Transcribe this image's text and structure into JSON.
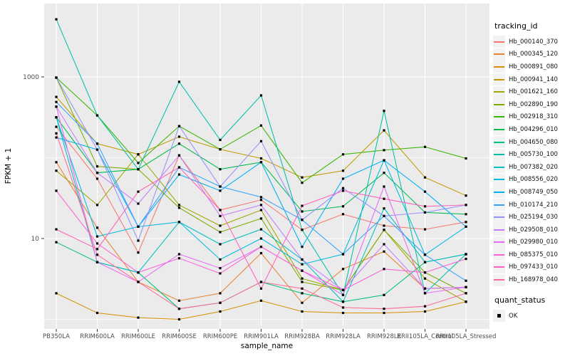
{
  "legend": {
    "tracking_title": "tracking_id",
    "quant_title": "quant_status",
    "quant_value": "OK"
  },
  "chart_data": {
    "type": "line",
    "title": "",
    "xlabel": "sample_name",
    "ylabel": "FPKM + 1",
    "y_scale": "log10",
    "panel_bg": "#EBEBEB",
    "grid_color": "#FFFFFF",
    "tick_text_color": "#4D4D4D",
    "marker": {
      "shape": "square",
      "color": "#000000"
    },
    "y_major_ticks": [
      {
        "label": "1000",
        "value": 1000
      },
      {
        "label": "10",
        "value": 10
      }
    ],
    "y_gridlines_major": [
      10,
      1000
    ],
    "y_gridlines_minor": [
      1,
      100
    ],
    "x_categories": [
      "PB350LA",
      "RRIM600LA",
      "RRIM600LE",
      "RRIM600SE",
      "RRIM600PE",
      "RRIM901LA",
      "RRIM928BA",
      "RRIM928LA",
      "RRIM928LE",
      "RRII105LA_Control",
      "RRII105LA_Stressed"
    ],
    "series": [
      {
        "name": "Hb_000140_370",
        "color": "#F8766D",
        "values": [
          241,
          55,
          6.7,
          107,
          22.5,
          30,
          12.8,
          20,
          14.4,
          13,
          16
        ]
      },
      {
        "name": "Hb_000345_120",
        "color": "#EA8331",
        "values": [
          88,
          13.6,
          2.9,
          1.7,
          2.1,
          6.6,
          1.6,
          4.2,
          6.9,
          2.4,
          2.5
        ]
      },
      {
        "name": "Hb_000891_080",
        "color": "#D89000",
        "values": [
          2.1,
          1.2,
          1.05,
          1.0,
          1.25,
          1.7,
          1.25,
          1.2,
          1.2,
          1.25,
          1.65
        ]
      },
      {
        "name": "Hb_000941_140",
        "color": "#C09B00",
        "values": [
          565,
          149,
          110,
          182,
          127,
          98,
          57,
          69,
          218,
          57,
          34
        ]
      },
      {
        "name": "Hb_001621_160",
        "color": "#A3A500",
        "values": [
          69,
          26,
          110,
          26,
          14.4,
          22.5,
          3.2,
          2.3,
          12.8,
          3.2,
          1.65
        ]
      },
      {
        "name": "Hb_002890_190",
        "color": "#7CAE00",
        "values": [
          980,
          78,
          72,
          24,
          12,
          17.7,
          2.9,
          2.3,
          12.8,
          3.8,
          2.1
        ]
      },
      {
        "name": "Hb_002918_310",
        "color": "#39B600",
        "values": [
          980,
          334,
          86,
          246,
          127,
          250,
          49,
          110,
          124,
          136,
          98
        ]
      },
      {
        "name": "Hb_004296_010",
        "color": "#00BB4E",
        "values": [
          316,
          65,
          72,
          149,
          72,
          88,
          21.6,
          25,
          65,
          21,
          20
        ]
      },
      {
        "name": "Hb_004650_080",
        "color": "#00BF7D",
        "values": [
          9,
          5.1,
          3.8,
          1.35,
          1.6,
          2.9,
          2.1,
          1.65,
          2.0,
          5.1,
          6.4
        ]
      },
      {
        "name": "Hb_005730_100",
        "color": "#00C1A3",
        "values": [
          5160,
          334,
          72,
          870,
          166,
          590,
          12.8,
          2.0,
          380,
          2.1,
          6.4
        ]
      },
      {
        "name": "Hb_007382_020",
        "color": "#00BFC4",
        "values": [
          316,
          5.1,
          3.8,
          16,
          8.5,
          13,
          5.5,
          1.65,
          23.6,
          5.1,
          6.4
        ]
      },
      {
        "name": "Hb_008556_020",
        "color": "#00BAE0",
        "values": [
          316,
          10.6,
          14,
          16,
          5.5,
          10,
          4.8,
          6.4,
          93,
          6.3,
          14
        ]
      },
      {
        "name": "Hb_008749_050",
        "color": "#00B0F6",
        "values": [
          178,
          126,
          14,
          62,
          39,
          88,
          7.9,
          55,
          93,
          38,
          14
        ]
      },
      {
        "name": "Hb_010174_210",
        "color": "#35A2FF",
        "values": [
          490,
          149,
          14,
          76,
          44,
          32.5,
          17,
          6.4,
          19,
          6.3,
          3.0
        ]
      },
      {
        "name": "Hb_025194_030",
        "color": "#9590FF",
        "values": [
          980,
          126,
          9.4,
          246,
          44,
          160,
          17,
          42,
          19,
          21,
          26
        ]
      },
      {
        "name": "Hb_029508_010",
        "color": "#C77CFF",
        "values": [
          427,
          65,
          27,
          107,
          19,
          26,
          5.5,
          2.3,
          8.5,
          2.4,
          2.5
        ]
      },
      {
        "name": "Hb_029980_010",
        "color": "#E76BF3",
        "values": [
          427,
          5.1,
          2.9,
          6.4,
          4.3,
          7.9,
          4.0,
          2.0,
          44,
          2.1,
          2.5
        ]
      },
      {
        "name": "Hb_085375_010",
        "color": "#FA62DB",
        "values": [
          39,
          8.7,
          3.8,
          5.7,
          3.7,
          7.9,
          4.0,
          2.3,
          4.2,
          3.8,
          5.6
        ]
      },
      {
        "name": "Hb_097433_010",
        "color": "#FF62BC",
        "values": [
          13,
          7.4,
          38,
          76,
          22.5,
          2.4,
          25.4,
          39,
          31,
          25,
          26
        ]
      },
      {
        "name": "Hb_168978_040",
        "color": "#FF6A98",
        "values": [
          200,
          6.3,
          2.9,
          1.35,
          1.6,
          2.9,
          2.4,
          1.4,
          1.35,
          1.45,
          2.1
        ]
      }
    ]
  }
}
